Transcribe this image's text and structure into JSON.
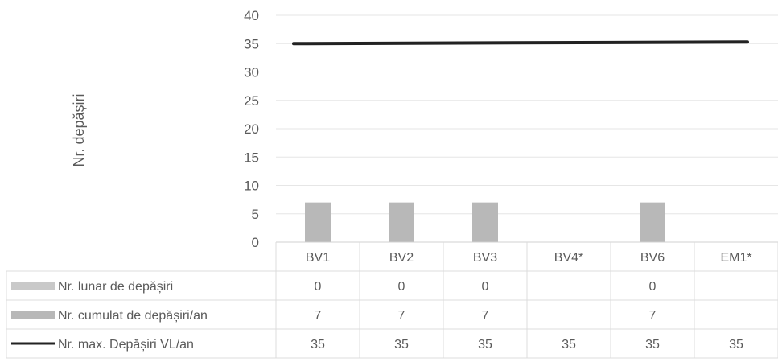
{
  "chart_data": {
    "type": "bar",
    "ylabel": "Nr. depășiri",
    "ylim": [
      0,
      40
    ],
    "yticks": [
      0,
      5,
      10,
      15,
      20,
      25,
      30,
      35,
      40
    ],
    "grid": true,
    "categories": [
      "BV1",
      "BV2",
      "BV3",
      "BV4*",
      "BV6",
      "EM1*"
    ],
    "series": [
      {
        "name": "Nr. lunar de depășiri",
        "kind": "bar",
        "color": "#c9c9c9",
        "values": [
          0,
          0,
          0,
          null,
          0,
          null
        ]
      },
      {
        "name": "Nr. cumulat de depășiri/an",
        "kind": "bar",
        "color": "#b8b8b8",
        "values": [
          7,
          7,
          7,
          null,
          7,
          null
        ]
      },
      {
        "name": "Nr. max. Depășiri VL/an",
        "kind": "line",
        "color": "#222222",
        "values": [
          35,
          35,
          35,
          35,
          35,
          35
        ]
      }
    ],
    "legend_placement": "table-below"
  }
}
